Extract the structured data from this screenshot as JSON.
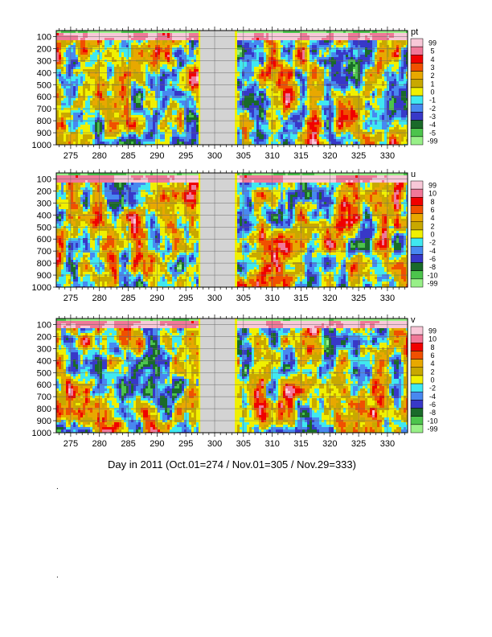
{
  "chart_data": {
    "type": "heatmap",
    "xlabel": "Day in 2011 (Oct.01=274 / Nov.01=305 / Nov.29=333)",
    "xlim": [
      272.5,
      333.5
    ],
    "x_ticks": [
      275,
      280,
      285,
      290,
      295,
      300,
      305,
      310,
      315,
      320,
      325,
      330
    ],
    "ylim": [
      1000,
      50
    ],
    "y_ticks": [
      100,
      200,
      300,
      400,
      500,
      600,
      700,
      800,
      900,
      1000
    ],
    "missing_data_days": [
      297.5,
      303.5
    ],
    "panels": [
      {
        "variable": "pt",
        "levels": [
          -99,
          -5,
          -4,
          -3,
          -2,
          -1,
          0,
          1,
          2,
          3,
          4,
          5,
          99
        ],
        "colorbar_labels": [
          "99",
          "5",
          "4",
          "3",
          "2",
          "1",
          "0",
          "-1",
          "-2",
          "-3",
          "-4",
          "-5",
          "-99"
        ],
        "colors": [
          "#98f088",
          "#4cc44c",
          "#1a6a2a",
          "#3838c8",
          "#4888f0",
          "#40e8f0",
          "#f0f000",
          "#c8a800",
          "#e8a800",
          "#f05000",
          "#f00000",
          "#f07898",
          "#f8c8d8"
        ]
      },
      {
        "variable": "u",
        "levels": [
          -99,
          -10,
          -8,
          -6,
          -4,
          -2,
          0,
          2,
          4,
          6,
          8,
          10,
          99
        ],
        "colorbar_labels": [
          "99",
          "10",
          "8",
          "6",
          "4",
          "2",
          "0",
          "-2",
          "-4",
          "-6",
          "-8",
          "-10",
          "-99"
        ],
        "colors": [
          "#98f088",
          "#4cc44c",
          "#1a6a2a",
          "#3838c8",
          "#4888f0",
          "#40e8f0",
          "#f0f000",
          "#c8a800",
          "#e8a800",
          "#f05000",
          "#f00000",
          "#f07898",
          "#f8c8d8"
        ]
      },
      {
        "variable": "v",
        "levels": [
          -99,
          -10,
          -8,
          -6,
          -4,
          -2,
          0,
          2,
          4,
          6,
          8,
          10,
          99
        ],
        "colorbar_labels": [
          "99",
          "10",
          "8",
          "6",
          "4",
          "2",
          "0",
          "-2",
          "-4",
          "-6",
          "-8",
          "-10",
          "-99"
        ],
        "colors": [
          "#98f088",
          "#4cc44c",
          "#1a6a2a",
          "#3838c8",
          "#4888f0",
          "#40e8f0",
          "#f0f000",
          "#c8a800",
          "#e8a800",
          "#f05000",
          "#f00000",
          "#f07898",
          "#f8c8d8"
        ]
      }
    ]
  },
  "footer_marks": [
    ".",
    "."
  ]
}
